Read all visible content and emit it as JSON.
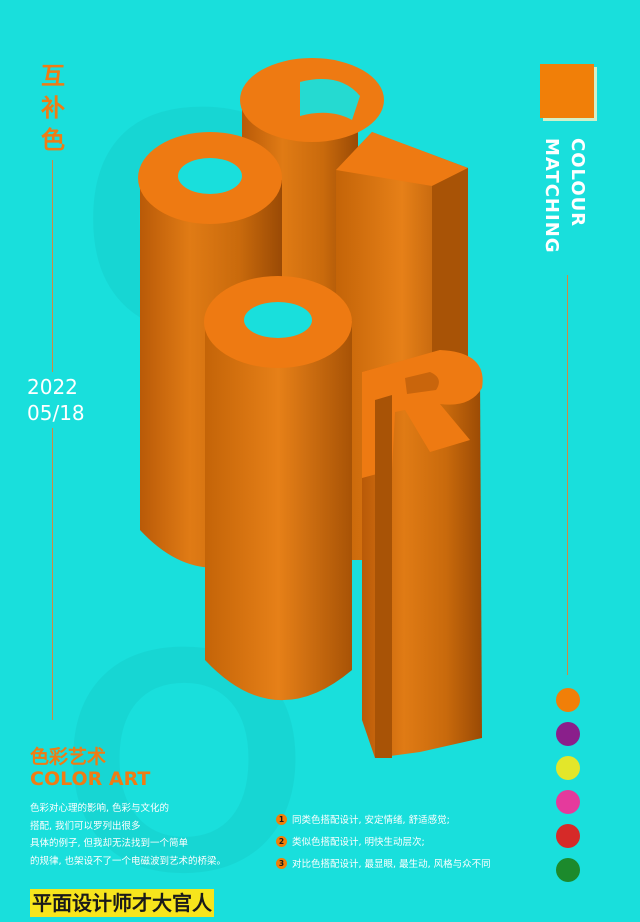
{
  "poster": {
    "vertical_title": [
      "互",
      "补",
      "色"
    ],
    "date_line1": "2022",
    "date_line2": "05/18",
    "vertical_text_line1": "COLOUR",
    "vertical_text_line2": "MATCHING",
    "color_square": "#f17f08",
    "palette": [
      "#f17f08",
      "#8a1f8b",
      "#e3e62a",
      "#e53a9c",
      "#d62a28",
      "#1c8a2c"
    ],
    "subtitle_cn": "色彩艺术",
    "subtitle_en": "COLOR ART",
    "description": [
      "色彩对心理的影响, 色彩与文化的",
      "搭配, 我们可以罗列出很多",
      "具体的例子, 但我却无法找到一个简单",
      "的规律, 也架设不了一个电磁波到艺术的桥梁。"
    ],
    "list": [
      {
        "num": "1",
        "text": "同类色搭配设计, 安定情绪, 舒适感觉;"
      },
      {
        "num": "2",
        "text": "类似色搭配设计, 明快生动层次;"
      },
      {
        "num": "3",
        "text": "对比色搭配设计, 最显眼, 最生动, 风格与众不同"
      }
    ],
    "footer": "平面设计师才大官人"
  },
  "artwork": {
    "letters": [
      "C",
      "O",
      "L",
      "O",
      "R"
    ],
    "colors": {
      "background": "#19dfdc",
      "letter_top": "#ee7a12",
      "letter_side": "#c9650c"
    }
  }
}
